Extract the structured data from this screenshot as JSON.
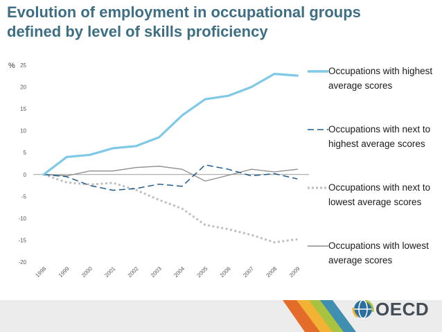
{
  "title_lines": [
    "Evolution of employment in occupational groups",
    "defined by level of skills proficiency"
  ],
  "logo_text": "OECD",
  "colors": {
    "title": "#3d6e83",
    "highest": "#7ec8e8",
    "next_highest": "#1f5a8c",
    "next_lowest": "#bfbfbf",
    "lowest": "#8c8c8c",
    "stripe_orange": "#e36c2a",
    "stripe_yellow": "#f2b233",
    "stripe_green": "#a9c23f",
    "stripe_teal": "#3e8fb0"
  },
  "chart_data": {
    "type": "line",
    "ylabel": "%",
    "ylim": [
      -20,
      25
    ],
    "yticks": [
      25,
      20,
      15,
      10,
      5,
      0,
      -5,
      -10,
      -15,
      -20
    ],
    "x": [
      "1998",
      "1999",
      "2000",
      "2001",
      "2002",
      "2003",
      "2004",
      "2005",
      "2006",
      "2007",
      "2008",
      "2009"
    ],
    "legend_position": "right",
    "series": [
      {
        "name": "Occupations with highest average scores",
        "style": "solid-thick",
        "color": "#7ec8e8",
        "values": [
          0,
          4.0,
          4.5,
          6.0,
          6.5,
          8.5,
          13.5,
          17.2,
          18.0,
          20.0,
          23.0,
          22.6
        ]
      },
      {
        "name": "Occupations with next to highest average scores",
        "style": "dashed",
        "color": "#1f5a8c",
        "values": [
          0,
          -0.5,
          -2.5,
          -3.6,
          -3.2,
          -2.2,
          -2.7,
          2.2,
          1.2,
          -0.3,
          0.2,
          -1.0
        ]
      },
      {
        "name": "Occupations with next to lowest average scores",
        "style": "dotted",
        "color": "#bfbfbf",
        "values": [
          0,
          -1.8,
          -2.3,
          -1.9,
          -3.5,
          -5.8,
          -7.8,
          -11.5,
          -12.5,
          -13.8,
          -15.5,
          -14.8
        ]
      },
      {
        "name": "Occupations with lowest average scores",
        "style": "solid-thin",
        "color": "#8c8c8c",
        "values": [
          0,
          -0.3,
          0.8,
          0.8,
          1.6,
          1.9,
          1.2,
          -1.5,
          -0.2,
          1.2,
          0.6,
          1.2
        ]
      }
    ]
  }
}
